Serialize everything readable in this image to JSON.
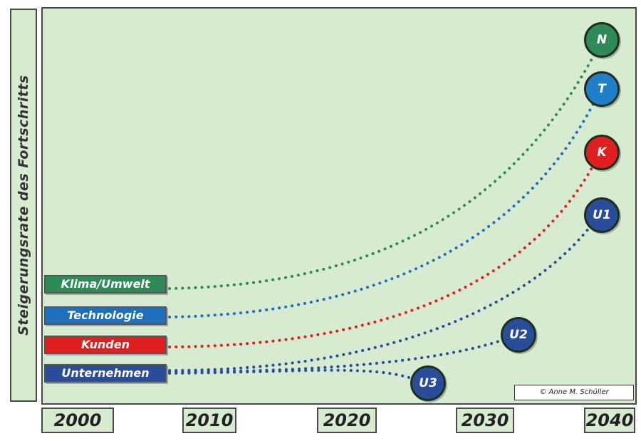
{
  "y_axis_label": "Steigerungsrate des Fortschritts",
  "categories": [
    {
      "label": "Klima/Umwelt",
      "color": "#2e8b57"
    },
    {
      "label": "Technologie",
      "color": "#1f6fbf"
    },
    {
      "label": "Kunden",
      "color": "#e02020"
    },
    {
      "label": "Unternehmen",
      "color": "#2a4d9a"
    }
  ],
  "nodes": [
    {
      "label": "N",
      "color": "#2e8b57"
    },
    {
      "label": "T",
      "color": "#1f7fc8"
    },
    {
      "label": "K",
      "color": "#e02020"
    },
    {
      "label": "U1",
      "color": "#2a4d9a"
    },
    {
      "label": "U2",
      "color": "#2a4d9a"
    },
    {
      "label": "U3",
      "color": "#2a4d9a"
    }
  ],
  "years": [
    "2000",
    "2010",
    "2020",
    "2030",
    "2040"
  ],
  "credit": "© Anne M. Schüller"
}
